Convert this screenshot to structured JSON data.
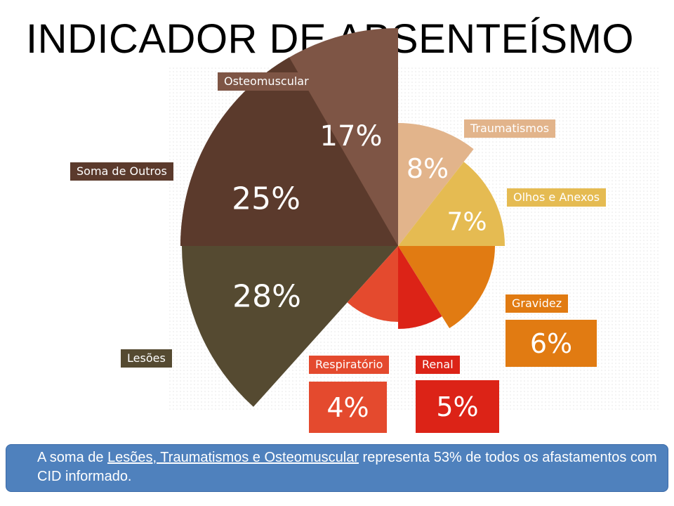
{
  "title": "INDICADOR DE ABSENTEÍSMO",
  "chart_data": {
    "type": "pie",
    "title": "INDICADOR DE ABSENTEÍSMO",
    "slices": [
      {
        "label": "Osteomuscular",
        "value": 17,
        "display": "17%",
        "color": "#7e5545"
      },
      {
        "label": "Traumatismos",
        "value": 8,
        "display": "8%",
        "color": "#e2b48b"
      },
      {
        "label": "Olhos e Anexos",
        "value": 7,
        "display": "7%",
        "color": "#e5bb52"
      },
      {
        "label": "Gravidez",
        "value": 6,
        "display": "6%",
        "color": "#e17b12"
      },
      {
        "label": "Renal",
        "value": 5,
        "display": "5%",
        "color": "#dc2317"
      },
      {
        "label": "Respiratório",
        "value": 4,
        "display": "4%",
        "color": "#e44a2e"
      },
      {
        "label": "Lesões",
        "value": 28,
        "display": "28%",
        "color": "#554a31"
      },
      {
        "label": "Soma de Outros",
        "value": 25,
        "display": "25%",
        "color": "#5b3a2c"
      }
    ]
  },
  "note": {
    "prefix": "A soma de ",
    "underlined": "Lesões, Traumatismos e Osteomuscular",
    "suffix": " representa 53% de todos os afastamentos com CID informado."
  }
}
